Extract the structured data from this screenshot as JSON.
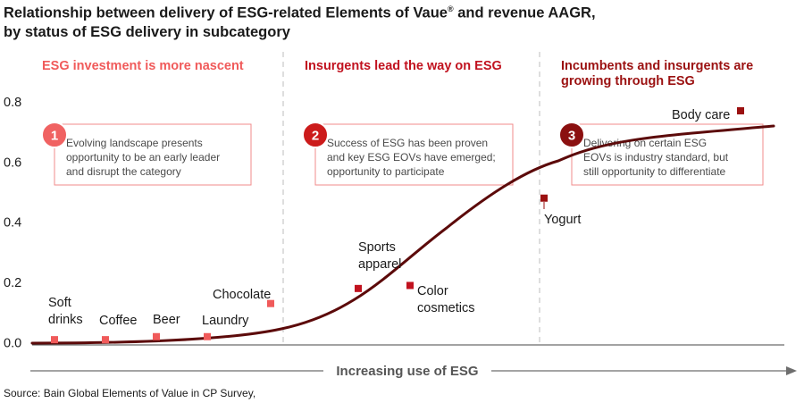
{
  "title_line1": "Relationship between delivery of ESG-related Elements of Vaue",
  "title_reg": "®",
  "title_line1_end": " and revenue AAGR,",
  "title_line2": "by status of ESG delivery in subcategory",
  "source": "Source: Bain Global Elements of Value in CP Survey,",
  "colors": {
    "curve": "#5c0a0a",
    "phase1": "#f05a5a",
    "phase2": "#c1121f",
    "phase3": "#9b1111",
    "circle1": "#f06262",
    "circle2": "#cc1b1b",
    "circle3": "#8b1010",
    "box_border": "#f28b8b",
    "divider": "#c8c8c8",
    "arrow": "#6e6e6e"
  },
  "phases": [
    {
      "title_lines": [
        "ESG investment is more nascent"
      ],
      "number": "1",
      "callout_lines": [
        "Evolving landscape presents",
        "opportunity to be an early leader",
        "and disrupt the category"
      ]
    },
    {
      "title_lines": [
        "Insurgents lead the way on ESG"
      ],
      "number": "2",
      "callout_lines": [
        "Success of ESG has been proven",
        "and key ESG EOVs have emerged;",
        "opportunity to participate"
      ]
    },
    {
      "title_lines": [
        "Incumbents and insurgents are",
        "growing through ESG"
      ],
      "number": "3",
      "callout_lines": [
        "Delivering on certain ESG",
        "EOVs is industry standard, but",
        "still opportunity to differentiate"
      ]
    }
  ],
  "chart_data": {
    "type": "scatter",
    "ylim": [
      0,
      0.8
    ],
    "y_ticks": [
      "0.0",
      "0.2",
      "0.4",
      "0.6",
      "0.8"
    ],
    "x_axis_label": "Increasing use of ESG",
    "trend": "s-curve",
    "points": [
      {
        "label_lines": [
          "Soft",
          "drinks"
        ],
        "y": 0.01,
        "phase": 1
      },
      {
        "label_lines": [
          "Coffee"
        ],
        "y": 0.01,
        "phase": 1
      },
      {
        "label_lines": [
          "Beer"
        ],
        "y": 0.02,
        "phase": 1
      },
      {
        "label_lines": [
          "Laundry"
        ],
        "y": 0.02,
        "phase": 1
      },
      {
        "label_lines": [
          "Chocolate"
        ],
        "y": 0.13,
        "phase": 1
      },
      {
        "label_lines": [
          "Sports",
          "apparel"
        ],
        "y": 0.18,
        "phase": 2
      },
      {
        "label_lines": [
          "Color",
          "cosmetics"
        ],
        "y": 0.19,
        "phase": 2
      },
      {
        "label_lines": [
          "Yogurt"
        ],
        "y": 0.48,
        "phase": 3
      },
      {
        "label_lines": [
          "Body care"
        ],
        "y": 0.77,
        "phase": 3
      }
    ]
  }
}
